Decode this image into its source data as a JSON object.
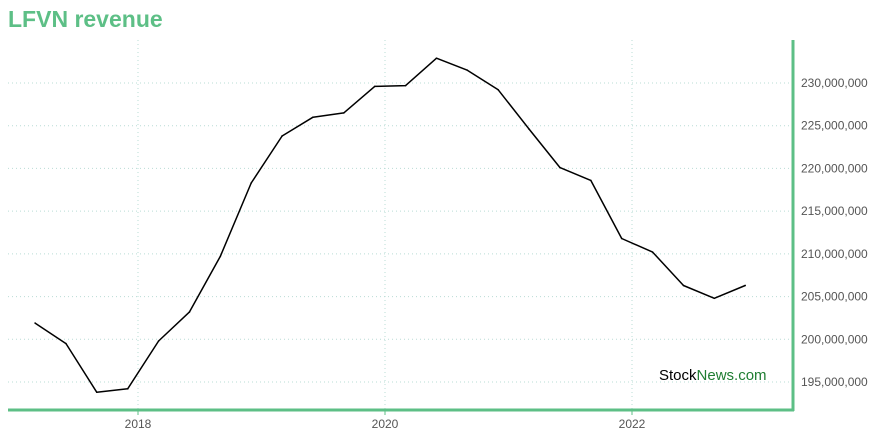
{
  "chart_data": {
    "type": "line",
    "title": "LFVN revenue",
    "xlabel": "",
    "ylabel": "",
    "x_ticks": [
      "2018",
      "2020",
      "2022"
    ],
    "y_ticks": [
      "195,000,000",
      "200,000,000",
      "205,000,000",
      "210,000,000",
      "215,000,000",
      "220,000,000",
      "225,000,000",
      "230,000,000"
    ],
    "ylim": [
      192000000,
      234500000
    ],
    "xlim": [
      "2017-01",
      "2023-06"
    ],
    "grid": true,
    "legend": "none",
    "series": [
      {
        "color": "#000000",
        "points": [
          {
            "x": "2017-03",
            "y": 201900000
          },
          {
            "x": "2017-06",
            "y": 199500000
          },
          {
            "x": "2017-09",
            "y": 193800000
          },
          {
            "x": "2017-12",
            "y": 194200000
          },
          {
            "x": "2018-03",
            "y": 199800000
          },
          {
            "x": "2018-06",
            "y": 203200000
          },
          {
            "x": "2018-09",
            "y": 209700000
          },
          {
            "x": "2018-12",
            "y": 218300000
          },
          {
            "x": "2019-03",
            "y": 223800000
          },
          {
            "x": "2019-06",
            "y": 226000000
          },
          {
            "x": "2019-09",
            "y": 226500000
          },
          {
            "x": "2019-12",
            "y": 229600000
          },
          {
            "x": "2020-03",
            "y": 229700000
          },
          {
            "x": "2020-06",
            "y": 232900000
          },
          {
            "x": "2020-09",
            "y": 231500000
          },
          {
            "x": "2020-12",
            "y": 229200000
          },
          {
            "x": "2021-03",
            "y": 224600000
          },
          {
            "x": "2021-06",
            "y": 220100000
          },
          {
            "x": "2021-09",
            "y": 218600000
          },
          {
            "x": "2021-12",
            "y": 211800000
          },
          {
            "x": "2022-03",
            "y": 210200000
          },
          {
            "x": "2022-06",
            "y": 206300000
          },
          {
            "x": "2022-09",
            "y": 204800000
          },
          {
            "x": "2022-12",
            "y": 206300000
          }
        ]
      }
    ],
    "axis_color": "#5dbf86",
    "grid_color": "#b9dcd5"
  },
  "watermark": {
    "part1": "Stock",
    "part2": "News",
    "part3": ".com",
    "color_dark": "#000000",
    "color_green": "#1f7d32"
  }
}
